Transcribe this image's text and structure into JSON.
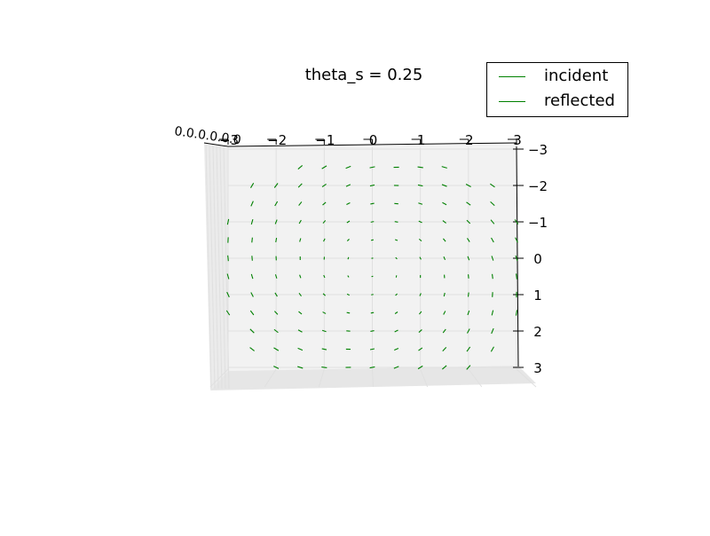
{
  "chart_data": {
    "type": "quiver3d",
    "title": "theta_s = 0.25",
    "x_ticks": [
      "−3",
      "−2",
      "−1",
      "0",
      "1",
      "2",
      "3"
    ],
    "y_ticks": [
      "−3",
      "−2",
      "−1",
      "0",
      "1",
      "2",
      "3"
    ],
    "z_ticks_overlapping": "0.0.0.0.0.0",
    "xlim": [
      -3,
      3
    ],
    "ylim": [
      -3,
      3
    ],
    "grid": true,
    "legend_position": "top-right",
    "series": [
      {
        "name": "incident",
        "color": "#008000"
      },
      {
        "name": "reflected",
        "color": "#008000"
      }
    ],
    "grid_x": [
      -3,
      -2.5,
      -2,
      -1.5,
      -1,
      -0.5,
      0,
      0.5,
      1,
      1.5,
      2,
      2.5,
      3
    ],
    "grid_y": [
      -2.5,
      -2,
      -1.5,
      -1,
      -0.5,
      0,
      0.5,
      1,
      1.5,
      2,
      2.5,
      3
    ]
  }
}
